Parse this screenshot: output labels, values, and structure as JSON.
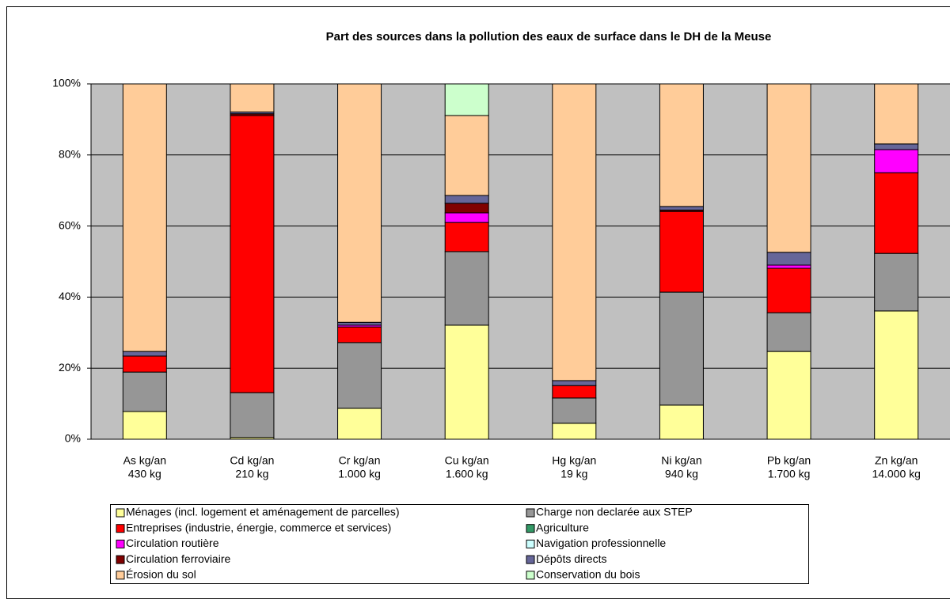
{
  "chart_data": {
    "type": "stacked_bar_percent",
    "title": "Part des sources dans la pollution des eaux de surface dans le DH de la Meuse",
    "categories": [
      [
        "As kg/an",
        "430 kg"
      ],
      [
        "Cd kg/an",
        "210 kg"
      ],
      [
        "Cr kg/an",
        "1.000 kg"
      ],
      [
        "Cu kg/an",
        "1.600 kg"
      ],
      [
        "Hg kg/an",
        "19 kg"
      ],
      [
        "Ni kg/an",
        "940 kg"
      ],
      [
        "Pb kg/an",
        "1.700 kg"
      ],
      [
        "Zn kg/an",
        "14.000 kg"
      ]
    ],
    "series": [
      {
        "name": "Ménages (incl. logement et aménagement de parcelles)",
        "color": "#ffff99",
        "values": [
          7.8,
          0.5,
          8.7,
          32.1,
          4.5,
          9.6,
          24.7,
          36.1
        ]
      },
      {
        "name": "Charge non declarée aux STEP",
        "color": "#969696",
        "values": [
          11.1,
          12.6,
          18.5,
          20.7,
          7.1,
          31.8,
          10.9,
          16.2
        ]
      },
      {
        "name": "Entreprises (industrie, énergie, commerce et services)",
        "color": "#ff0000",
        "values": [
          4.5,
          78.0,
          4.4,
          8.2,
          3.5,
          22.7,
          12.5,
          22.7
        ]
      },
      {
        "name": "Agriculture",
        "color": "#339966",
        "values": [
          0,
          0,
          0,
          0,
          0,
          0,
          0,
          0
        ]
      },
      {
        "name": "Circulation routière",
        "color": "#ff00ff",
        "values": [
          0,
          0,
          0.5,
          2.7,
          0,
          0,
          0.9,
          6.5
        ]
      },
      {
        "name": "Navigation professionnelle",
        "color": "#ccffff",
        "values": [
          0,
          0,
          0,
          0,
          0,
          0,
          0,
          0
        ]
      },
      {
        "name": "Circulation ferroviaire",
        "color": "#800000",
        "values": [
          0,
          0.5,
          0,
          2.7,
          0,
          0.4,
          0,
          0
        ]
      },
      {
        "name": "Dépôts directs",
        "color": "#666699",
        "values": [
          1.3,
          0.5,
          0.8,
          2.2,
          1.4,
          1.0,
          3.6,
          1.6
        ]
      },
      {
        "name": "Érosion du sol",
        "color": "#ffcc99",
        "values": [
          75.3,
          7.9,
          67.1,
          22.5,
          83.5,
          34.5,
          47.4,
          16.9
        ]
      },
      {
        "name": "Conservation du bois",
        "color": "#ccffcc",
        "values": [
          0,
          0,
          0,
          8.9,
          0,
          0,
          0,
          0
        ]
      }
    ],
    "ylim": [
      0,
      100
    ],
    "yticks": [
      {
        "value": 0,
        "label": "0%"
      },
      {
        "value": 20,
        "label": "20%"
      },
      {
        "value": 40,
        "label": "40%"
      },
      {
        "value": 60,
        "label": "60%"
      },
      {
        "value": 80,
        "label": "80%"
      },
      {
        "value": 100,
        "label": "100%"
      }
    ],
    "grid": true
  }
}
